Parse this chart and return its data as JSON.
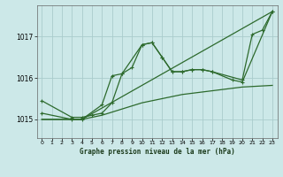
{
  "title": "Graphe pression niveau de la mer (hPa)",
  "background_color": "#cce8e8",
  "grid_color": "#aacccc",
  "line_color": "#2d6a2d",
  "x_ticks": [
    0,
    1,
    2,
    3,
    4,
    5,
    6,
    7,
    8,
    9,
    10,
    11,
    12,
    13,
    14,
    15,
    16,
    17,
    18,
    19,
    20,
    21,
    22,
    23
  ],
  "y_ticks": [
    1015,
    1016,
    1017
  ],
  "ylim": [
    1014.55,
    1017.75
  ],
  "xlim": [
    -0.5,
    23.5
  ],
  "series": [
    {
      "x": [
        0,
        3,
        4,
        6,
        7,
        8,
        10,
        11,
        12,
        13,
        14,
        15,
        16,
        17,
        20,
        21,
        22,
        23
      ],
      "y": [
        1015.15,
        1015.0,
        1015.0,
        1015.35,
        1016.05,
        1016.1,
        1016.8,
        1016.85,
        1016.5,
        1016.15,
        1016.15,
        1016.2,
        1016.2,
        1016.15,
        1015.95,
        1017.05,
        1017.15,
        1017.6
      ],
      "marker": true
    },
    {
      "x": [
        0,
        3,
        4,
        5,
        6,
        7,
        8,
        9,
        10,
        11,
        12,
        13,
        14,
        15,
        16,
        17,
        19,
        20,
        23
      ],
      "y": [
        1015.45,
        1015.05,
        1015.05,
        1015.1,
        1015.15,
        1015.4,
        1016.1,
        1016.25,
        1016.8,
        1016.85,
        1016.5,
        1016.15,
        1016.15,
        1016.2,
        1016.2,
        1016.15,
        1015.95,
        1015.9,
        1017.6
      ],
      "marker": true
    },
    {
      "x": [
        0,
        4,
        23
      ],
      "y": [
        1015.0,
        1015.0,
        1017.6
      ],
      "marker": false
    },
    {
      "x": [
        0,
        4,
        6,
        10,
        14,
        19,
        20,
        23
      ],
      "y": [
        1015.0,
        1015.0,
        1015.1,
        1015.4,
        1015.6,
        1015.75,
        1015.78,
        1015.82
      ],
      "marker": false
    }
  ]
}
